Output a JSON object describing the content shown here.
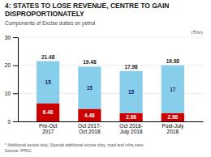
{
  "chart_data": {
    "type": "bar",
    "stacked": true,
    "title": "4: STATES TO LOSE REVENUE, CENTRE TO GAIN\nDISPROPORTIONATELY",
    "subtitle": "Components of Excise duties on petrol",
    "ylabel": "(₹/ltr)",
    "footnote": "* Additional excise duty, Special additional excise duty, road and infra cess\nSource: PPAC",
    "categories": [
      "Pre-Oct\n2017",
      "Oct 2017-\nOct 2018",
      "Oct 2018-\nJuly 2018",
      "Post-July\n2018"
    ],
    "series": [
      {
        "color": "#cc0000",
        "values": [
          6.48,
          4.48,
          2.98,
          2.98
        ]
      },
      {
        "color": "#87ceeb",
        "values": [
          15,
          15,
          15,
          17
        ]
      }
    ],
    "totals": [
      21.48,
      19.48,
      17.98,
      19.98
    ],
    "ylim": [
      0,
      30
    ],
    "yticks": [
      0,
      10,
      20,
      30
    ],
    "grid": true,
    "data_labels": true
  }
}
